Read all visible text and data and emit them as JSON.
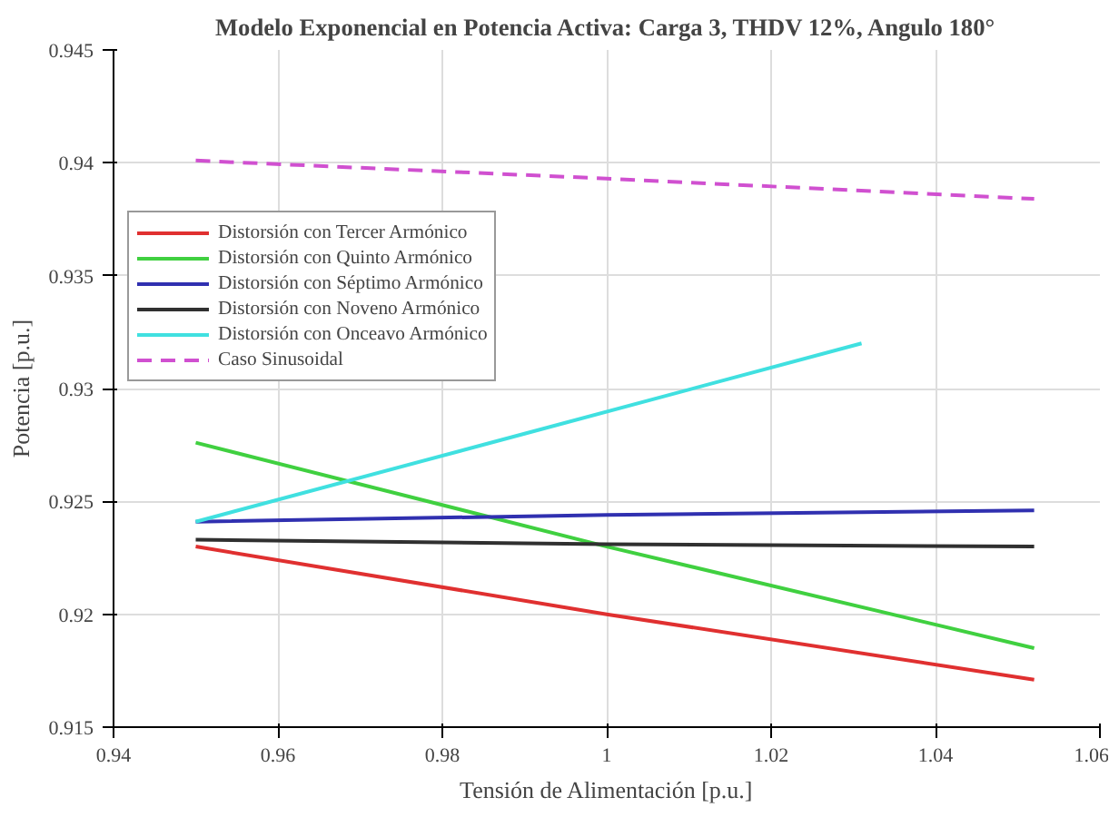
{
  "chart_data": {
    "type": "line",
    "title": "Modelo Exponencial en Potencia Activa: Carga 3, THDV 12%, Angulo 180°",
    "xlabel": "Tensión de Alimentación [p.u.]",
    "ylabel": "Potencia [p.u.]",
    "x": [
      0.95,
      1.0,
      1.052
    ],
    "series": [
      {
        "name": "Distorsión con Tercer Armónico",
        "color": "#e03030",
        "values": [
          0.923,
          0.92,
          0.9171
        ]
      },
      {
        "name": "Distorsión con Quinto Armónico",
        "color": "#40d040",
        "values": [
          0.9276,
          0.923,
          0.9185
        ]
      },
      {
        "name": "Distorsión con Séptimo Armónico",
        "color": "#3030b0",
        "values": [
          0.9241,
          0.9244,
          0.9246
        ]
      },
      {
        "name": "Distorsión con Noveno Armónico",
        "color": "#303030",
        "values": [
          0.9233,
          0.9231,
          0.923
        ]
      },
      {
        "name": "Distorsión con Onceavo Armónico",
        "color": "#40e0e0",
        "x": [
          0.95,
          0.99,
          1.031
        ],
        "values": [
          0.9241,
          0.928,
          0.932
        ]
      },
      {
        "name": "Caso Sinusoidal",
        "color": "#d050d0",
        "line_style": "dashed",
        "values": [
          0.9401,
          0.9393,
          0.9384
        ]
      }
    ],
    "xlim": [
      0.94,
      1.06
    ],
    "xticks": [
      0.94,
      0.96,
      0.98,
      1,
      1.02,
      1.04,
      1.06
    ],
    "ylim": [
      0.915,
      0.945
    ],
    "yticks": [
      0.915,
      0.92,
      0.925,
      0.93,
      0.935,
      0.94,
      0.945
    ],
    "grid": true,
    "legend": "top left"
  }
}
